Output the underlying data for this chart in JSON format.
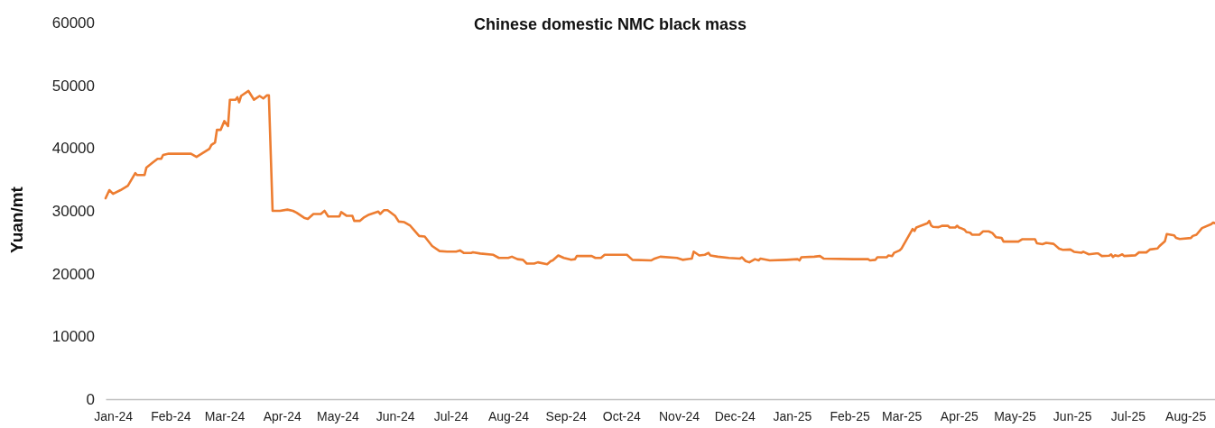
{
  "chart_data": {
    "type": "line",
    "title": "Chinese domestic NMC black mass",
    "ylabel": "Yuan/mt",
    "xlim": [
      "2023-12-28",
      "2025-08-17"
    ],
    "xticks": [
      {
        "value": "2024-01-01",
        "label": "Jan-24"
      },
      {
        "value": "2024-02-01",
        "label": "Feb-24"
      },
      {
        "value": "2024-03-01",
        "label": "Mar-24"
      },
      {
        "value": "2024-04-01",
        "label": "Apr-24"
      },
      {
        "value": "2024-05-01",
        "label": "May-24"
      },
      {
        "value": "2024-06-01",
        "label": "Jun-24"
      },
      {
        "value": "2024-07-01",
        "label": "Jul-24"
      },
      {
        "value": "2024-08-01",
        "label": "Aug-24"
      },
      {
        "value": "2024-09-01",
        "label": "Sep-24"
      },
      {
        "value": "2024-10-01",
        "label": "Oct-24"
      },
      {
        "value": "2024-11-01",
        "label": "Nov-24"
      },
      {
        "value": "2024-12-01",
        "label": "Dec-24"
      },
      {
        "value": "2025-01-01",
        "label": "Jan-25"
      },
      {
        "value": "2025-02-01",
        "label": "Feb-25"
      },
      {
        "value": "2025-03-01",
        "label": "Mar-25"
      },
      {
        "value": "2025-04-01",
        "label": "Apr-25"
      },
      {
        "value": "2025-05-01",
        "label": "May-25"
      },
      {
        "value": "2025-06-01",
        "label": "Jun-25"
      },
      {
        "value": "2025-07-01",
        "label": "Jul-25"
      },
      {
        "value": "2025-08-01",
        "label": "Aug-25"
      }
    ],
    "ylim": [
      0,
      60000
    ],
    "yticks": [
      0,
      10000,
      20000,
      30000,
      40000,
      50000,
      60000
    ],
    "marker": "none",
    "line_style": "solid",
    "series": [
      {
        "color": "#ed7d31",
        "x": [
          "2023-12-28",
          "2023-12-30",
          "2024-01-01",
          "2024-01-05",
          "2024-01-09",
          "2024-01-11",
          "2024-01-13",
          "2024-01-14",
          "2024-01-18",
          "2024-01-19",
          "2024-01-22",
          "2024-01-25",
          "2024-01-27",
          "2024-01-28",
          "2024-01-31",
          "2024-02-12",
          "2024-02-15",
          "2024-02-22",
          "2024-02-23",
          "2024-02-25",
          "2024-02-26",
          "2024-02-28",
          "2024-03-01",
          "2024-03-03",
          "2024-03-04",
          "2024-03-07",
          "2024-03-08",
          "2024-03-09",
          "2024-03-10",
          "2024-03-14",
          "2024-03-17",
          "2024-03-20",
          "2024-03-22",
          "2024-03-24",
          "2024-03-25",
          "2024-03-27",
          "2024-03-31",
          "2024-04-04",
          "2024-04-07",
          "2024-04-09",
          "2024-04-13",
          "2024-04-15",
          "2024-04-18",
          "2024-04-22",
          "2024-04-24",
          "2024-04-26",
          "2024-05-02",
          "2024-05-03",
          "2024-05-06",
          "2024-05-09",
          "2024-05-10",
          "2024-05-13",
          "2024-05-15",
          "2024-05-18",
          "2024-05-23",
          "2024-05-24",
          "2024-05-26",
          "2024-05-28",
          "2024-06-01",
          "2024-06-03",
          "2024-06-06",
          "2024-06-09",
          "2024-06-14",
          "2024-06-17",
          "2024-06-21",
          "2024-06-25",
          "2024-06-29",
          "2024-07-04",
          "2024-07-06",
          "2024-07-08",
          "2024-07-12",
          "2024-07-13",
          "2024-07-17",
          "2024-07-24",
          "2024-07-27",
          "2024-08-01",
          "2024-08-03",
          "2024-08-06",
          "2024-08-09",
          "2024-08-11",
          "2024-08-15",
          "2024-08-17",
          "2024-08-22",
          "2024-08-24",
          "2024-08-25",
          "2024-08-28",
          "2024-08-31",
          "2024-09-04",
          "2024-09-06",
          "2024-09-07",
          "2024-09-15",
          "2024-09-17",
          "2024-09-20",
          "2024-09-22",
          "2024-10-04",
          "2024-10-07",
          "2024-10-17",
          "2024-10-19",
          "2024-10-22",
          "2024-10-31",
          "2024-11-03",
          "2024-11-08",
          "2024-11-09",
          "2024-11-12",
          "2024-11-15",
          "2024-11-17",
          "2024-11-18",
          "2024-11-22",
          "2024-11-28",
          "2024-12-04",
          "2024-12-05",
          "2024-12-07",
          "2024-12-09",
          "2024-12-12",
          "2024-12-14",
          "2024-12-15",
          "2024-12-20",
          "2024-12-29",
          "2025-01-04",
          "2025-01-05",
          "2025-01-06",
          "2025-01-13",
          "2025-01-16",
          "2025-01-18",
          "2025-02-03",
          "2025-02-11",
          "2025-02-12",
          "2025-02-15",
          "2025-02-16",
          "2025-02-21",
          "2025-02-22",
          "2025-02-24",
          "2025-02-25",
          "2025-02-28",
          "2025-03-01",
          "2025-03-07",
          "2025-03-08",
          "2025-03-09",
          "2025-03-15",
          "2025-03-16",
          "2025-03-17",
          "2025-03-18",
          "2025-03-21",
          "2025-03-23",
          "2025-03-26",
          "2025-03-27",
          "2025-03-30",
          "2025-03-31",
          "2025-04-01",
          "2025-04-02",
          "2025-04-04",
          "2025-04-05",
          "2025-04-07",
          "2025-04-08",
          "2025-04-12",
          "2025-04-14",
          "2025-04-17",
          "2025-04-19",
          "2025-04-21",
          "2025-04-24",
          "2025-04-25",
          "2025-05-03",
          "2025-05-05",
          "2025-05-12",
          "2025-05-13",
          "2025-05-16",
          "2025-05-18",
          "2025-05-22",
          "2025-05-25",
          "2025-05-27",
          "2025-05-31",
          "2025-06-02",
          "2025-06-06",
          "2025-06-07",
          "2025-06-10",
          "2025-06-14",
          "2025-06-15",
          "2025-06-17",
          "2025-06-21",
          "2025-06-22",
          "2025-06-23",
          "2025-06-24",
          "2025-06-26",
          "2025-06-28",
          "2025-06-29",
          "2025-07-05",
          "2025-07-07",
          "2025-07-11",
          "2025-07-13",
          "2025-07-17",
          "2025-07-18",
          "2025-07-21",
          "2025-07-22",
          "2025-07-24",
          "2025-07-26",
          "2025-07-27",
          "2025-07-29",
          "2025-08-04",
          "2025-08-05",
          "2025-08-07",
          "2025-08-10",
          "2025-08-15",
          "2025-08-16",
          "2025-08-17"
        ],
        "values": [
          32000,
          33300,
          32700,
          33300,
          34000,
          35000,
          36000,
          35700,
          35700,
          36900,
          37600,
          38300,
          38300,
          38900,
          39100,
          39100,
          38600,
          39900,
          40500,
          40900,
          42900,
          42900,
          44300,
          43500,
          47700,
          47700,
          48100,
          47300,
          48300,
          49100,
          47700,
          48300,
          47900,
          48400,
          48400,
          30000,
          30000,
          30200,
          30000,
          29700,
          28900,
          28700,
          29500,
          29500,
          30000,
          29100,
          29100,
          29800,
          29200,
          29200,
          28400,
          28400,
          28900,
          29400,
          29900,
          29500,
          30100,
          30100,
          29200,
          28300,
          28200,
          27700,
          26000,
          25900,
          24400,
          23600,
          23500,
          23500,
          23700,
          23300,
          23300,
          23400,
          23200,
          23000,
          22500,
          22500,
          22700,
          22300,
          22200,
          21600,
          21600,
          21800,
          21500,
          22000,
          22100,
          22900,
          22500,
          22200,
          22300,
          22800,
          22800,
          22500,
          22500,
          23000,
          23000,
          22200,
          22100,
          22400,
          22700,
          22500,
          22200,
          22400,
          23500,
          22900,
          23000,
          23300,
          22900,
          22700,
          22500,
          22400,
          22600,
          22000,
          21800,
          22300,
          22100,
          22400,
          22100,
          22200,
          22300,
          22100,
          22600,
          22700,
          22800,
          22400,
          22300,
          22300,
          22100,
          22200,
          22600,
          22600,
          22900,
          22800,
          23300,
          23700,
          24000,
          27100,
          26800,
          27350,
          28030,
          28400,
          27670,
          27460,
          27400,
          27620,
          27620,
          27350,
          27350,
          27620,
          27350,
          27250,
          26990,
          26620,
          26520,
          26200,
          26200,
          26730,
          26730,
          26460,
          25790,
          25680,
          25100,
          25100,
          25470,
          25470,
          24840,
          24690,
          24900,
          24740,
          23960,
          23800,
          23850,
          23480,
          23330,
          23480,
          23070,
          23220,
          23220,
          22800,
          22860,
          23070,
          22650,
          22910,
          22800,
          23070,
          22800,
          22910,
          23380,
          23380,
          23850,
          24010,
          24370,
          25160,
          26310,
          26200,
          26100,
          25680,
          25520,
          25680,
          26000,
          26200,
          27250,
          27880,
          28140,
          28030
        ]
      }
    ]
  }
}
